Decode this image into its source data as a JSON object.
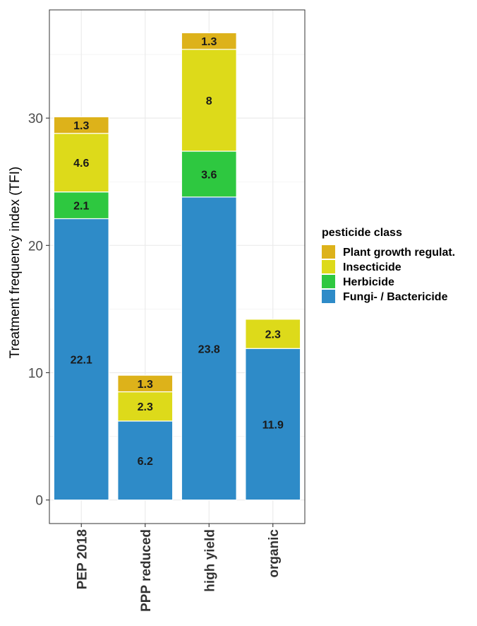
{
  "chart_data": {
    "type": "bar",
    "stacked": true,
    "categories": [
      "PEP 2018",
      "PPP reduced",
      "high yield",
      "organic"
    ],
    "series": [
      {
        "name": "Fungi- / Bactericide",
        "color": "#2E8BC8",
        "values": [
          22.1,
          6.2,
          23.8,
          11.9
        ]
      },
      {
        "name": "Herbicide",
        "color": "#2EC840",
        "values": [
          2.1,
          0,
          3.6,
          0
        ]
      },
      {
        "name": "Insecticide",
        "color": "#DDDA1A",
        "values": [
          4.6,
          2.3,
          8,
          2.3
        ]
      },
      {
        "name": "Plant growth regulat.",
        "color": "#DDB21A",
        "values": [
          1.3,
          1.3,
          1.3,
          0
        ]
      }
    ],
    "data_labels": [
      [
        "22.1",
        "2.1",
        "4.6",
        "1.3"
      ],
      [
        "6.2",
        "",
        "2.3",
        "1.3"
      ],
      [
        "23.8",
        "3.6",
        "8",
        "1.3"
      ],
      [
        "11.9",
        "",
        "2.3",
        ""
      ]
    ],
    "title": "",
    "xlabel": "",
    "ylabel": "Treatment frequency index (TFI)",
    "ylim": [
      -1.85,
      38.5
    ],
    "yticks": [
      0,
      10,
      20,
      30
    ],
    "ytick_labels": [
      "0",
      "10",
      "20",
      "30"
    ],
    "grid": true,
    "legend": {
      "title": "pesticide class",
      "placement": "right",
      "entries": [
        {
          "label": "Plant growth regulat.",
          "color": "#DDB21A"
        },
        {
          "label": "Insecticide",
          "color": "#DDDA1A"
        },
        {
          "label": "Herbicide",
          "color": "#2EC840"
        },
        {
          "label": "Fungi- / Bactericide",
          "color": "#2E8BC8"
        }
      ]
    }
  }
}
